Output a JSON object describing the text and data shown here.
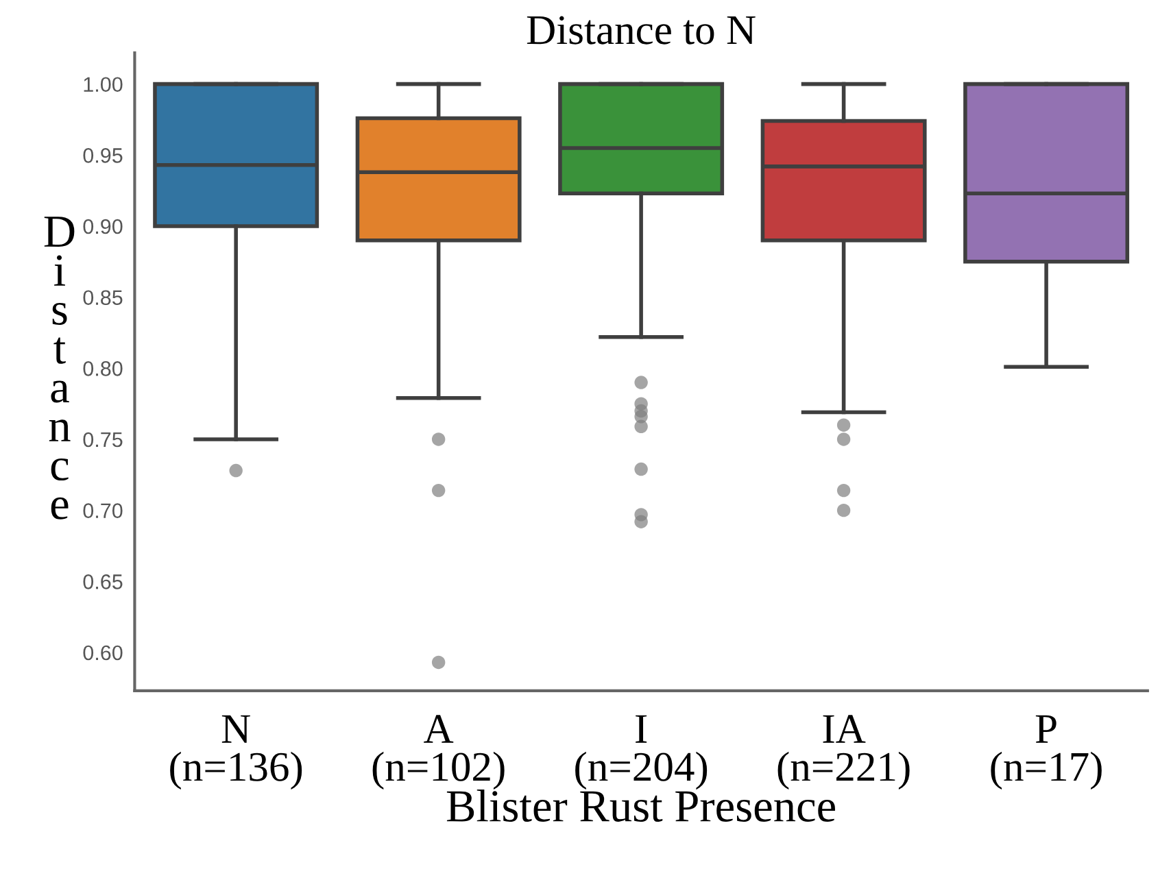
{
  "chart_data": {
    "type": "box",
    "title": "Distance to N",
    "xlabel": "Blister Rust Presence",
    "ylabel": "Distance",
    "categories": [
      "N\n(n=136)",
      "A\n(n=102)",
      "I\n(n=204)",
      "IA\n(n=221)",
      "P\n(n=17)"
    ],
    "colors": [
      "#3274a1",
      "#e1812c",
      "#3a923a",
      "#c03d3e",
      "#9372b2"
    ],
    "boxes": [
      {
        "low": 0.75,
        "q1": 0.9,
        "median": 0.943,
        "q3": 1.0,
        "high": 1.0,
        "outliers": [
          0.728
        ]
      },
      {
        "low": 0.779,
        "q1": 0.89,
        "median": 0.938,
        "q3": 0.976,
        "high": 1.0,
        "outliers": [
          0.75,
          0.714,
          0.593
        ]
      },
      {
        "low": 0.822,
        "q1": 0.923,
        "median": 0.955,
        "q3": 1.0,
        "high": 1.0,
        "outliers": [
          0.79,
          0.775,
          0.77,
          0.766,
          0.759,
          0.729,
          0.697,
          0.692
        ]
      },
      {
        "low": 0.769,
        "q1": 0.89,
        "median": 0.942,
        "q3": 0.974,
        "high": 1.0,
        "outliers": [
          0.76,
          0.75,
          0.714,
          0.7
        ]
      },
      {
        "low": 0.801,
        "q1": 0.875,
        "median": 0.923,
        "q3": 1.0,
        "high": 1.0
      }
    ],
    "ylim": [
      0.573,
      1.022
    ],
    "yticks": [
      {
        "value": 0.6,
        "label": "0.60"
      },
      0.65,
      {
        "value": 0.7,
        "label": "0.70"
      },
      0.75,
      {
        "value": 0.8,
        "label": "0.80"
      },
      0.85,
      {
        "value": 0.9,
        "label": "0.90"
      },
      0.95,
      {
        "value": 1.0,
        "label": "1.00"
      }
    ],
    "grid": false,
    "legend": false
  }
}
